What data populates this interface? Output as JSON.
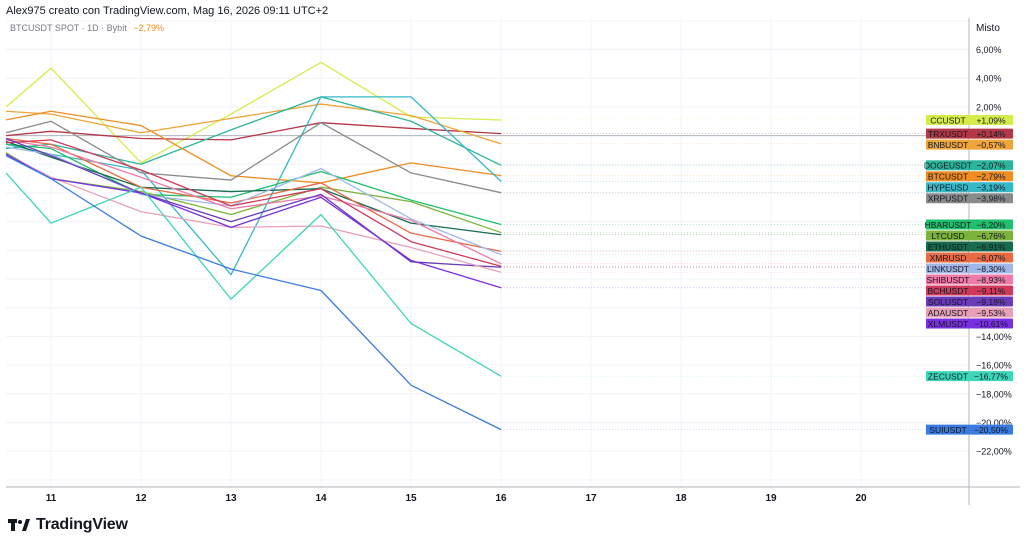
{
  "header": {
    "text": "Alex975 creato con TradingView.com, Mag 16, 2026 09:11 UTC+2"
  },
  "footer": {
    "brand": "TradingView"
  },
  "chart_data": {
    "type": "line",
    "title": "BTCUSDT SPOT · 1D · Bybit",
    "title_change": "−2,79%",
    "scale_label": "Misto",
    "x": [
      10.5,
      11,
      12,
      13,
      14,
      15,
      16
    ],
    "x_ticks": [
      11,
      12,
      13,
      14,
      15,
      16,
      17,
      18,
      19,
      20
    ],
    "xlim": [
      10.5,
      21.2
    ],
    "ylim": [
      -24.5,
      8.2
    ],
    "y_ticks": [
      {
        "v": 6,
        "label": "6,00%"
      },
      {
        "v": 4,
        "label": "4,00%"
      },
      {
        "v": 2,
        "label": "2,00%"
      },
      {
        "v": -14,
        "label": "−14,00%"
      },
      {
        "v": -16,
        "label": "−16,00%"
      },
      {
        "v": -18,
        "label": "−18,00%"
      },
      {
        "v": -20,
        "label": "−20,00%"
      },
      {
        "v": -22,
        "label": "−22,00%"
      }
    ],
    "grid": true,
    "baseline": 0,
    "series": [
      {
        "name": "CCUSDT",
        "change": "+1,09%",
        "color": "#d6ec4a",
        "values": [
          2.0,
          4.7,
          -1.9,
          1.5,
          5.1,
          1.3,
          1.09
        ]
      },
      {
        "name": "TRXUSDT",
        "change": "+0,14%",
        "color": "#b33847",
        "values": [
          0.0,
          0.3,
          -0.2,
          -0.3,
          0.9,
          0.5,
          0.14
        ]
      },
      {
        "name": "BNBUSDT",
        "change": "−0,57%",
        "color": "#f0a53a",
        "values": [
          1.7,
          1.5,
          0.2,
          1.2,
          2.2,
          1.4,
          -0.57
        ]
      },
      {
        "name": "DOGEUSDT",
        "change": "−2,07%",
        "color": "#2bb59a",
        "values": [
          -0.9,
          -0.6,
          -2.0,
          0.4,
          2.7,
          1.0,
          -2.07
        ]
      },
      {
        "name": "BTCUSDT",
        "change": "−2,79%",
        "color": "#f08c22",
        "values": [
          1.1,
          1.7,
          0.7,
          -2.8,
          -3.3,
          -1.9,
          -2.79
        ]
      },
      {
        "name": "HYPEUSD",
        "change": "−3,19%",
        "color": "#35b8c8",
        "values": [
          -0.6,
          -1.3,
          -2.4,
          -9.7,
          2.7,
          2.7,
          -3.19
        ]
      },
      {
        "name": "XRPUSDT",
        "change": "−3,98%",
        "color": "#8a8a8a",
        "values": [
          0.2,
          1.0,
          -2.6,
          -3.1,
          0.9,
          -2.6,
          -3.98
        ]
      },
      {
        "name": "HBARUSDT",
        "change": "−6,20%",
        "color": "#1fbf6c",
        "values": [
          -0.6,
          -0.9,
          -4.1,
          -4.3,
          -2.5,
          -4.5,
          -6.2
        ]
      },
      {
        "name": "LTCUSD",
        "change": "−6,76%",
        "color": "#7cb33a",
        "values": [
          -1.2,
          -3.0,
          -3.9,
          -5.5,
          -3.6,
          -4.6,
          -6.76
        ]
      },
      {
        "name": "ETHUSDT",
        "change": "−6,91%",
        "color": "#186a4f",
        "values": [
          -0.4,
          -1.5,
          -3.6,
          -3.9,
          -3.7,
          -6.1,
          -6.91
        ]
      },
      {
        "name": "XMRUSD",
        "change": "−8,07%",
        "color": "#e86a42",
        "values": [
          -0.2,
          -0.6,
          -3.6,
          -4.7,
          -3.3,
          -6.8,
          -8.07
        ]
      },
      {
        "name": "LINKUSDT",
        "change": "−8,30%",
        "color": "#9fb8e8",
        "values": [
          -0.8,
          -1.3,
          -4.1,
          -4.9,
          -2.3,
          -5.8,
          -8.3
        ]
      },
      {
        "name": "SHIBUSDT",
        "change": "−8,93%",
        "color": "#f07aa8",
        "values": [
          -0.3,
          -0.8,
          -2.9,
          -5.1,
          -4.2,
          -5.9,
          -8.93
        ]
      },
      {
        "name": "BCHUSDT",
        "change": "−9,11%",
        "color": "#d03a5a",
        "values": [
          -0.5,
          -0.3,
          -2.4,
          -4.9,
          -3.7,
          -7.4,
          -9.11
        ]
      },
      {
        "name": "SOLUSDT",
        "change": "−9,18%",
        "color": "#6b3bb8",
        "values": [
          -0.2,
          -1.4,
          -4.0,
          -6.0,
          -4.1,
          -8.8,
          -9.18
        ]
      },
      {
        "name": "ADAUSDT",
        "change": "−9,53%",
        "color": "#e8a0b8",
        "values": [
          -1.3,
          -2.9,
          -5.3,
          -6.4,
          -6.3,
          -7.8,
          -9.53
        ]
      },
      {
        "name": "XLMUSDT",
        "change": "−10,61%",
        "color": "#7a2fe0",
        "values": [
          -1.3,
          -3.0,
          -4.0,
          -6.4,
          -4.3,
          -8.7,
          -10.61
        ]
      },
      {
        "name": "ZECUSDT",
        "change": "−16,77%",
        "color": "#3dd6b8",
        "values": [
          -2.6,
          -6.1,
          -3.6,
          -11.4,
          -5.5,
          -13.1,
          -16.77
        ]
      },
      {
        "name": "SUIUSDT",
        "change": "−20,50%",
        "color": "#3a7be0",
        "values": [
          -1.4,
          -3.0,
          -7.0,
          -9.3,
          -10.8,
          -17.4,
          -20.5
        ]
      }
    ]
  }
}
